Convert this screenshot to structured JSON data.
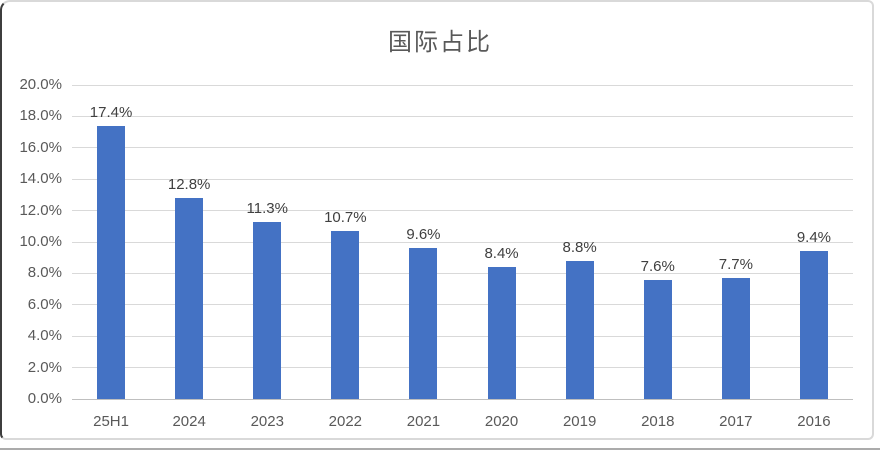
{
  "title": "国际占比",
  "colors": {
    "bar": "#4472C4",
    "gridline": "#D9D9D9",
    "axis_line": "#BFBFBF",
    "title_text": "#595959",
    "tick_text": "#595959",
    "data_label_text": "#404040",
    "frame_border": "#D9D9D9",
    "frame_left_edge": "#3D3D3D"
  },
  "chart_data": {
    "type": "bar",
    "title": "国际占比",
    "categories": [
      "25H1",
      "2024",
      "2023",
      "2022",
      "2021",
      "2020",
      "2019",
      "2018",
      "2017",
      "2016"
    ],
    "values": [
      17.4,
      12.8,
      11.3,
      10.7,
      9.6,
      8.4,
      8.8,
      7.6,
      7.7,
      9.4
    ],
    "data_labels": [
      "17.4%",
      "12.8%",
      "11.3%",
      "10.7%",
      "9.6%",
      "8.4%",
      "8.8%",
      "7.6%",
      "7.7%",
      "9.4%"
    ],
    "xlabel": "",
    "ylabel": "",
    "ylim": [
      0,
      20
    ],
    "ytick_values": [
      20,
      18,
      16,
      14,
      12,
      10,
      8,
      6,
      4,
      2,
      0
    ],
    "ytick_labels": [
      "20.0%",
      "18.0%",
      "16.0%",
      "14.0%",
      "12.0%",
      "10.0%",
      "8.0%",
      "6.0%",
      "4.0%",
      "2.0%",
      "0.0%"
    ],
    "grid": "horizontal",
    "legend": "none"
  }
}
